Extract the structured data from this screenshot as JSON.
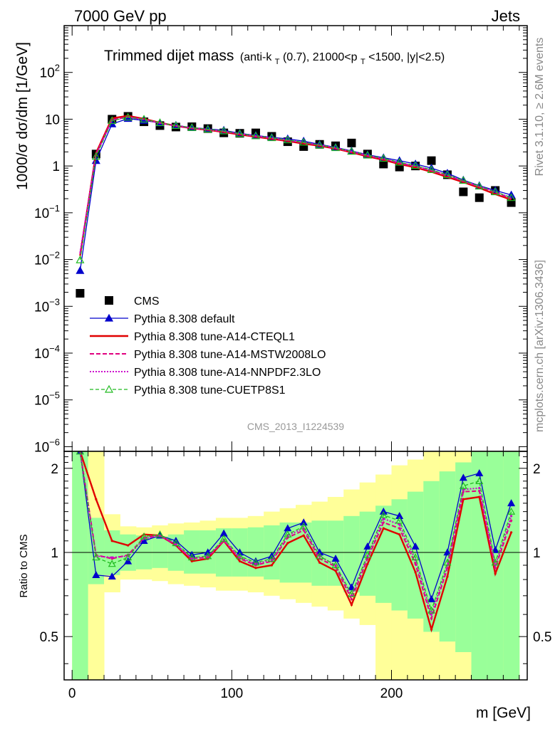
{
  "header": {
    "left": "7000 GeV pp",
    "right": "Jets",
    "title_main": "Trimmed dijet mass",
    "title_cut": "(anti-k",
    "title_cut_sub": "T",
    "title_cut_2": "(0.7), 21000<p",
    "title_cut_sub2": "T",
    "title_cut_3": "<1500, |y|<2.5)"
  },
  "side_labels": {
    "rivet": "Rivet 3.1.10, ≥ 2.6M events",
    "mcplots": "mcplots.cern.ch [arXiv:1306.3436]",
    "analysis": "CMS_2013_I1224539"
  },
  "chart_data": {
    "type": "scatter",
    "xlabel": "m [GeV]",
    "ylabel_main": "1000/σ dσ/dm [1/GeV]",
    "ylabel_ratio": "Ratio to CMS",
    "xlim": [
      -5,
      285
    ],
    "ylim_main_log10": [
      -6.1,
      3.0
    ],
    "ylim_ratio": [
      0.35,
      2.3
    ],
    "yscale_main": "log",
    "yscale_ratio": "log",
    "x_ticks": [
      0,
      100,
      200
    ],
    "main_y_ticks": [
      {
        "v": 100,
        "b": "10",
        "e": "2"
      },
      {
        "v": 10,
        "b": "10",
        "e": ""
      },
      {
        "v": 1,
        "b": "1",
        "e": ""
      },
      {
        "v": 0.1,
        "b": "10",
        "e": "−1"
      },
      {
        "v": 0.01,
        "b": "10",
        "e": "−2"
      },
      {
        "v": 0.001,
        "b": "10",
        "e": "−3"
      },
      {
        "v": 0.0001,
        "b": "10",
        "e": "−4"
      },
      {
        "v": 1e-05,
        "b": "10",
        "e": "−5"
      },
      {
        "v": 1e-06,
        "b": "10",
        "e": "−6"
      }
    ],
    "ratio_y_ticks": [
      {
        "v": 2,
        "label": "2"
      },
      {
        "v": 1,
        "label": "1"
      },
      {
        "v": 0.5,
        "label": "0.5"
      }
    ],
    "x": [
      5,
      15,
      25,
      35,
      45,
      55,
      65,
      75,
      85,
      95,
      105,
      115,
      125,
      135,
      145,
      155,
      165,
      175,
      185,
      195,
      205,
      215,
      225,
      235,
      245,
      255,
      265,
      275
    ],
    "cms": [
      0.0019,
      1.8,
      10,
      11.5,
      8.8,
      7.3,
      6.8,
      6.9,
      6.3,
      5.1,
      5.0,
      5.1,
      4.3,
      3.3,
      2.6,
      2.9,
      2.7,
      3.1,
      1.8,
      1.1,
      0.95,
      1.0,
      1.3,
      0.65,
      0.28,
      0.21,
      0.3,
      0.165
    ],
    "band_inner": [
      [
        0.35,
        2.3
      ],
      [
        0.77,
        1.33
      ],
      [
        0.83,
        1.2
      ],
      [
        0.86,
        1.16
      ],
      [
        0.87,
        1.15
      ],
      [
        0.88,
        1.14
      ],
      [
        0.86,
        1.16
      ],
      [
        0.84,
        1.2
      ],
      [
        0.84,
        1.2
      ],
      [
        0.82,
        1.22
      ],
      [
        0.82,
        1.22
      ],
      [
        0.82,
        1.23
      ],
      [
        0.8,
        1.25
      ],
      [
        0.78,
        1.28
      ],
      [
        0.78,
        1.28
      ],
      [
        0.76,
        1.3
      ],
      [
        0.76,
        1.3
      ],
      [
        0.72,
        1.35
      ],
      [
        0.7,
        1.4
      ],
      [
        0.66,
        1.47
      ],
      [
        0.62,
        1.55
      ],
      [
        0.58,
        1.65
      ],
      [
        0.52,
        1.8
      ],
      [
        0.48,
        1.95
      ],
      [
        0.44,
        2.1
      ],
      [
        0.35,
        2.3
      ],
      [
        0.35,
        2.3
      ],
      [
        0.35,
        2.3
      ]
    ],
    "band_outer": [
      [
        0.35,
        2.3
      ],
      [
        0.35,
        2.3
      ],
      [
        0.72,
        1.37
      ],
      [
        0.8,
        1.24
      ],
      [
        0.8,
        1.23
      ],
      [
        0.79,
        1.25
      ],
      [
        0.77,
        1.27
      ],
      [
        0.76,
        1.28
      ],
      [
        0.75,
        1.3
      ],
      [
        0.73,
        1.33
      ],
      [
        0.73,
        1.33
      ],
      [
        0.72,
        1.35
      ],
      [
        0.7,
        1.4
      ],
      [
        0.68,
        1.44
      ],
      [
        0.66,
        1.48
      ],
      [
        0.64,
        1.52
      ],
      [
        0.62,
        1.58
      ],
      [
        0.58,
        1.68
      ],
      [
        0.55,
        1.78
      ],
      [
        0.35,
        1.9
      ],
      [
        0.35,
        2.05
      ],
      [
        0.35,
        2.15
      ],
      [
        0.35,
        2.3
      ],
      [
        0.35,
        2.3
      ],
      [
        0.35,
        2.3
      ],
      [
        0.35,
        2.3
      ],
      [
        0.35,
        2.3
      ],
      [
        0.35,
        2.3
      ]
    ],
    "series": [
      {
        "name": "CMS",
        "color": "#000000",
        "marker": "square",
        "main": [
          0.0019,
          1.8,
          10,
          11.5,
          8.8,
          7.3,
          6.8,
          6.9,
          6.3,
          5.1,
          5.0,
          5.1,
          4.3,
          3.3,
          2.6,
          2.9,
          2.7,
          3.1,
          1.8,
          1.1,
          0.95,
          1.0,
          1.3,
          0.65,
          0.28,
          0.21,
          0.3,
          0.165
        ]
      },
      {
        "name": "Pythia 8.308 default",
        "color": "#0000cc",
        "dash": "",
        "width": 1.3,
        "marker": "triangle-filled",
        "main": [
          0.0058,
          1.3,
          7.9,
          10.3,
          9.4,
          8.3,
          7.4,
          6.6,
          6.2,
          5.8,
          5.0,
          4.5,
          4.1,
          3.8,
          3.4,
          2.9,
          2.5,
          2.1,
          1.74,
          1.5,
          1.3,
          1.1,
          0.9,
          0.7,
          0.5,
          0.38,
          0.3,
          0.24
        ],
        "ratio": [
          3.0,
          0.83,
          0.82,
          0.93,
          1.1,
          1.15,
          1.1,
          0.98,
          1.0,
          1.17,
          1.0,
          0.93,
          0.97,
          1.22,
          1.28,
          1.0,
          0.95,
          0.75,
          1.05,
          1.4,
          1.35,
          1.05,
          0.68,
          1.0,
          1.85,
          1.92,
          1.02,
          1.5
        ]
      },
      {
        "name": "Pythia 8.308 tune-A14-CTEQL1",
        "color": "#e00000",
        "dash": "",
        "width": 2.4,
        "marker": "",
        "main": [
          0.012,
          1.9,
          10.5,
          11.8,
          10.2,
          8.4,
          7.2,
          6.4,
          5.9,
          5.3,
          4.7,
          4.2,
          3.8,
          3.4,
          3.0,
          2.7,
          2.35,
          1.95,
          1.6,
          1.35,
          1.1,
          0.93,
          0.75,
          0.58,
          0.45,
          0.34,
          0.25,
          0.19
        ],
        "ratio": [
          4.5,
          1.55,
          1.1,
          1.06,
          1.16,
          1.15,
          1.06,
          0.93,
          0.95,
          1.1,
          0.93,
          0.88,
          0.9,
          1.08,
          1.15,
          0.92,
          0.86,
          0.65,
          0.91,
          1.22,
          1.16,
          0.85,
          0.53,
          0.82,
          1.55,
          1.58,
          0.84,
          1.18
        ]
      },
      {
        "name": "Pythia 8.308 tune-A14-MSTW2008LO",
        "color": "#e0007f",
        "dash": "6,3",
        "width": 2.0,
        "marker": "",
        "main": [
          0.013,
          1.8,
          9.7,
          11.2,
          9.9,
          8.3,
          7.2,
          6.5,
          6.0,
          5.5,
          4.8,
          4.3,
          3.9,
          3.5,
          3.1,
          2.8,
          2.4,
          2.0,
          1.65,
          1.4,
          1.15,
          0.97,
          0.79,
          0.62,
          0.47,
          0.36,
          0.27,
          0.2
        ],
        "ratio": [
          4.0,
          0.98,
          0.95,
          0.98,
          1.13,
          1.15,
          1.06,
          0.95,
          0.96,
          1.1,
          0.95,
          0.9,
          0.93,
          1.13,
          1.2,
          0.95,
          0.89,
          0.68,
          0.95,
          1.28,
          1.22,
          0.91,
          0.58,
          0.88,
          1.65,
          1.66,
          0.88,
          1.3
        ]
      },
      {
        "name": "Pythia 8.308 tune-A14-NNPDF2.3LO",
        "color": "#cc00cc",
        "dash": "2,2",
        "width": 2.0,
        "marker": "",
        "main": [
          0.014,
          1.75,
          9.5,
          11.1,
          9.8,
          8.3,
          7.2,
          6.5,
          6.0,
          5.5,
          4.9,
          4.4,
          4.0,
          3.6,
          3.2,
          2.8,
          2.45,
          2.05,
          1.7,
          1.43,
          1.18,
          1.0,
          0.82,
          0.64,
          0.48,
          0.37,
          0.28,
          0.21
        ],
        "ratio": [
          4.0,
          0.97,
          0.96,
          0.97,
          1.12,
          1.15,
          1.07,
          0.95,
          0.97,
          1.11,
          0.96,
          0.91,
          0.94,
          1.15,
          1.22,
          0.97,
          0.9,
          0.7,
          0.97,
          1.32,
          1.26,
          0.94,
          0.6,
          0.9,
          1.68,
          1.7,
          0.9,
          1.35
        ]
      },
      {
        "name": "Pythia 8.308 tune-CUETP8S1",
        "color": "#22bb22",
        "dash": "5,3",
        "width": 1.3,
        "marker": "triangle-open",
        "main": [
          0.0098,
          1.6,
          9.3,
          11.0,
          10.0,
          8.4,
          7.3,
          6.6,
          6.1,
          5.6,
          4.9,
          4.4,
          4.0,
          3.6,
          3.2,
          2.8,
          2.45,
          2.05,
          1.7,
          1.45,
          1.2,
          1.02,
          0.83,
          0.65,
          0.49,
          0.37,
          0.28,
          0.21
        ],
        "ratio": [
          3.5,
          0.96,
          0.91,
          0.96,
          1.14,
          1.16,
          1.08,
          0.96,
          0.97,
          1.12,
          0.97,
          0.92,
          0.95,
          1.16,
          1.24,
          0.97,
          0.9,
          0.71,
          0.98,
          1.36,
          1.3,
          0.96,
          0.62,
          0.92,
          1.73,
          1.8,
          0.92,
          1.4
        ]
      }
    ]
  }
}
